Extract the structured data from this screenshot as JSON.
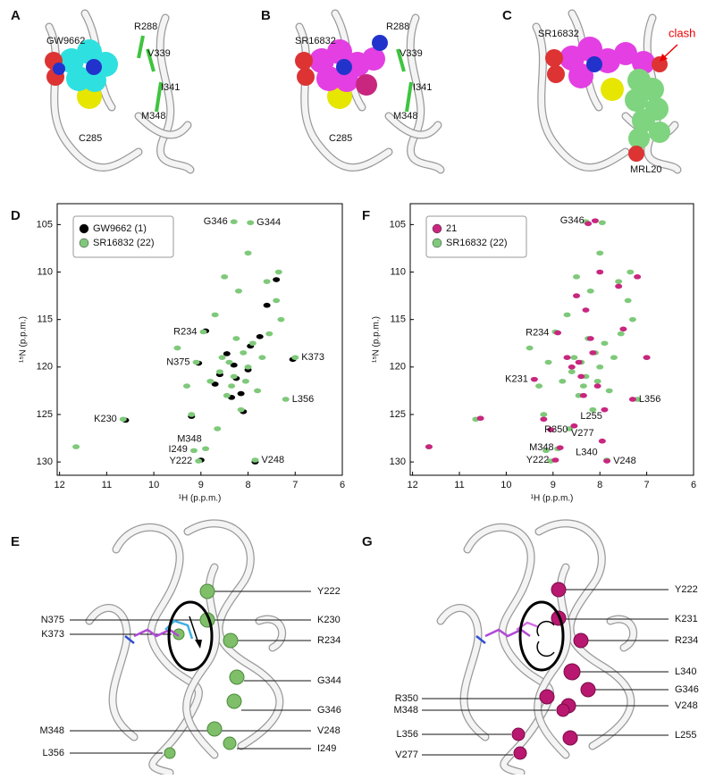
{
  "panels": {
    "A": {
      "label": "A",
      "annotations": [
        "GW9662",
        "R288",
        "V339",
        "I341",
        "C285",
        "M348"
      ]
    },
    "B": {
      "label": "B",
      "annotations": [
        "SR16832",
        "R288",
        "V339",
        "I341",
        "C285",
        "M348"
      ]
    },
    "C": {
      "label": "C",
      "annotations": [
        "SR16832",
        "clash",
        "MRL20"
      ]
    },
    "E": {
      "label": "E",
      "residues": [
        "Y222",
        "N375",
        "K230",
        "K373",
        "R234",
        "G344",
        "G346",
        "M348",
        "V248",
        "L356",
        "I249"
      ]
    },
    "G": {
      "label": "G",
      "residues": [
        "Y222",
        "K231",
        "R234",
        "L340",
        "R350",
        "G346",
        "M348",
        "V248",
        "L356",
        "L255",
        "V277"
      ]
    }
  },
  "chart_data": [
    {
      "type": "scatter",
      "label": "D",
      "xlabel": "¹H (p.p.m.)",
      "ylabel": "¹⁵N (p.p.m.)",
      "xlim": [
        12.05,
        6
      ],
      "ylim": [
        131.4,
        102.8
      ],
      "xticks": [
        12,
        11,
        10,
        9,
        8,
        7,
        6
      ],
      "yticks": [
        105,
        110,
        115,
        120,
        125,
        130
      ],
      "legend": "upper left",
      "series": [
        {
          "name": "GW9662 (1)",
          "color": "#000000",
          "x": [
            10.6,
            9.0,
            7.85,
            8.3,
            8.9,
            9.05,
            7.05,
            8.25,
            8.0,
            7.95,
            8.6,
            8.15,
            7.75,
            8.45,
            7.6,
            8.7,
            8.1,
            9.2,
            7.4,
            8.35
          ],
          "values": [
            125.6,
            129.8,
            130.0,
            119.8,
            116.2,
            119.6,
            119.2,
            121.2,
            120.3,
            117.8,
            120.8,
            122.8,
            116.8,
            118.6,
            113.5,
            121.8,
            124.7,
            125.2,
            110.8,
            123.2
          ]
        },
        {
          "name": "SR16832 (22)",
          "color": "#7fc97a",
          "x": [
            11.65,
            10.65,
            9.05,
            8.9,
            9.15,
            7.85,
            7.95,
            8.3,
            8.95,
            9.1,
            7.0,
            7.2,
            8.0,
            8.5,
            8.2,
            8.7,
            7.6,
            7.4,
            7.3,
            7.9,
            8.1,
            8.4,
            8.6,
            8.8,
            9.3,
            9.5,
            8.3,
            8.0,
            7.8,
            8.45,
            8.15,
            7.55,
            8.65,
            9.2,
            8.25,
            7.7,
            8.05,
            8.55,
            7.35,
            8.35
          ],
          "values": [
            128.4,
            125.5,
            129.9,
            128.6,
            128.8,
            129.8,
            104.8,
            104.7,
            116.3,
            119.5,
            119.0,
            123.4,
            108.0,
            110.5,
            112.0,
            114.5,
            111.0,
            113.0,
            115.0,
            117.5,
            118.5,
            119.5,
            120.5,
            121.5,
            122.0,
            118.0,
            121.0,
            120.0,
            122.5,
            123.0,
            124.5,
            116.5,
            126.5,
            125.0,
            117.0,
            119.0,
            121.5,
            119.0,
            110.0,
            122.0
          ]
        }
      ],
      "annotations": [
        {
          "text": "G346",
          "x": 8.3,
          "y": 104.7
        },
        {
          "text": "G344",
          "x": 7.95,
          "y": 104.8
        },
        {
          "text": "R234",
          "x": 8.95,
          "y": 116.3
        },
        {
          "text": "N375",
          "x": 9.1,
          "y": 119.5
        },
        {
          "text": "K373",
          "x": 7.0,
          "y": 119.0
        },
        {
          "text": "K230",
          "x": 10.65,
          "y": 125.5
        },
        {
          "text": "L356",
          "x": 7.2,
          "y": 123.4
        },
        {
          "text": "M348",
          "x": 8.85,
          "y": 127.6
        },
        {
          "text": "I249",
          "x": 9.15,
          "y": 128.7
        },
        {
          "text": "Y222",
          "x": 9.05,
          "y": 129.9
        },
        {
          "text": "V248",
          "x": 7.85,
          "y": 129.8
        }
      ]
    },
    {
      "type": "scatter",
      "label": "F",
      "xlabel": "¹H (p.p.m.)",
      "ylabel": "¹⁵N (p.p.m.)",
      "xlim": [
        12.05,
        6
      ],
      "ylim": [
        131.4,
        102.8
      ],
      "xticks": [
        12,
        11,
        10,
        9,
        8,
        7,
        6
      ],
      "yticks": [
        105,
        110,
        115,
        120,
        125,
        130
      ],
      "legend": "upper left",
      "series": [
        {
          "name": "21",
          "color": "#c8267f",
          "x": [
            11.65,
            10.55,
            8.95,
            8.85,
            9.05,
            7.85,
            8.1,
            8.25,
            8.9,
            9.4,
            7.0,
            7.3,
            8.0,
            8.5,
            8.3,
            7.6,
            7.2,
            8.15,
            8.6,
            8.4,
            8.05,
            8.7,
            7.9,
            9.2,
            8.2,
            7.5,
            8.35,
            7.95,
            8.55,
            8.45
          ],
          "values": [
            128.4,
            125.4,
            129.8,
            128.5,
            126.6,
            129.9,
            104.6,
            104.9,
            116.4,
            121.3,
            119.0,
            123.4,
            110.0,
            112.5,
            114.0,
            111.5,
            110.5,
            118.5,
            120.0,
            121.0,
            122.0,
            119.0,
            124.5,
            125.5,
            117.0,
            116.0,
            123.0,
            127.8,
            126.2,
            119.5
          ]
        },
        {
          "name": "SR16832 (22)",
          "color": "#7fc97a",
          "x": [
            11.65,
            10.65,
            9.05,
            8.9,
            9.15,
            7.85,
            7.95,
            8.3,
            8.95,
            9.1,
            7.0,
            7.2,
            8.0,
            8.5,
            8.2,
            8.7,
            7.6,
            7.4,
            7.3,
            7.9,
            8.1,
            8.4,
            8.6,
            8.8,
            9.3,
            9.5,
            8.3,
            8.0,
            7.8,
            8.45,
            8.15,
            7.55,
            8.65,
            9.2,
            8.25,
            7.7,
            8.05,
            8.55,
            7.35,
            8.35
          ],
          "values": [
            128.4,
            125.5,
            129.9,
            128.6,
            128.8,
            129.8,
            104.8,
            104.7,
            116.3,
            119.5,
            119.0,
            123.4,
            108.0,
            110.5,
            112.0,
            114.5,
            111.0,
            113.0,
            115.0,
            117.5,
            118.5,
            119.5,
            120.5,
            121.5,
            122.0,
            118.0,
            121.0,
            120.0,
            122.5,
            123.0,
            124.5,
            116.5,
            126.5,
            125.0,
            117.0,
            119.0,
            121.5,
            119.0,
            110.0,
            122.0
          ]
        }
      ],
      "annotations": [
        {
          "text": "G346",
          "x": 8.2,
          "y": 104.6
        },
        {
          "text": "R234",
          "x": 8.95,
          "y": 116.4
        },
        {
          "text": "K231",
          "x": 9.4,
          "y": 121.3
        },
        {
          "text": "L356",
          "x": 7.3,
          "y": 123.4
        },
        {
          "text": "L255",
          "x": 8.55,
          "y": 125.2
        },
        {
          "text": "R350",
          "x": 8.55,
          "y": 126.6
        },
        {
          "text": "V277",
          "x": 8.75,
          "y": 127.0
        },
        {
          "text": "M348",
          "x": 8.85,
          "y": 128.5
        },
        {
          "text": "L340",
          "x": 8.65,
          "y": 129.0
        },
        {
          "text": "Y222",
          "x": 8.95,
          "y": 129.8
        },
        {
          "text": "V248",
          "x": 7.85,
          "y": 129.9
        }
      ]
    }
  ]
}
